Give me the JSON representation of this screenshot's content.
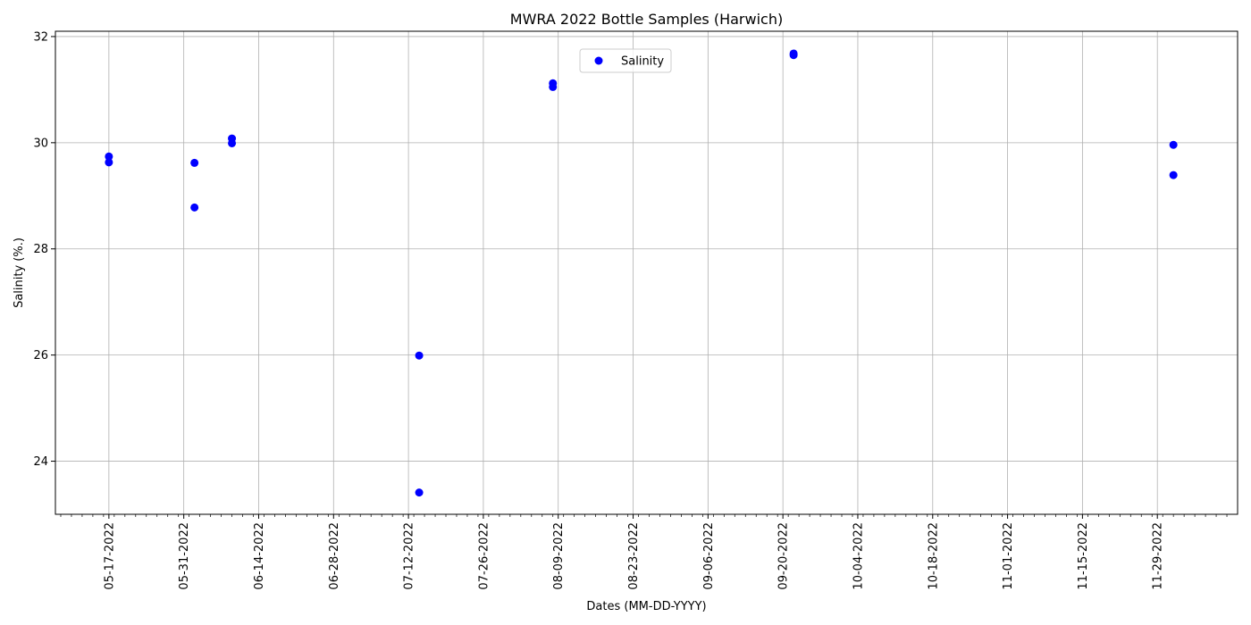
{
  "chart_data": {
    "type": "scatter",
    "title": "MWRA 2022 Bottle Samples (Harwich)",
    "xlabel": "Dates (MM-DD-YYYY)",
    "ylabel": "Salinity (%.)",
    "grid": true,
    "legend_position": "upper-center",
    "x_axis_type": "date",
    "xlim": [
      "2022-05-07",
      "2022-12-14"
    ],
    "ylim": [
      23.0,
      32.1
    ],
    "x_ticks": [
      "05-17-2022",
      "05-31-2022",
      "06-14-2022",
      "06-28-2022",
      "07-12-2022",
      "07-26-2022",
      "08-09-2022",
      "08-23-2022",
      "09-06-2022",
      "09-20-2022",
      "10-04-2022",
      "10-18-2022",
      "11-01-2022",
      "11-15-2022",
      "11-29-2022"
    ],
    "y_ticks": [
      "24",
      "26",
      "28",
      "30",
      "32"
    ],
    "series": [
      {
        "name": "Salinity",
        "color": "#0000ff",
        "points": [
          {
            "x": "2022-05-17",
            "y": 29.74
          },
          {
            "x": "2022-05-17",
            "y": 29.63
          },
          {
            "x": "2022-06-02",
            "y": 29.62
          },
          {
            "x": "2022-06-02",
            "y": 28.78
          },
          {
            "x": "2022-06-09",
            "y": 30.08
          },
          {
            "x": "2022-06-09",
            "y": 29.99
          },
          {
            "x": "2022-07-14",
            "y": 25.99
          },
          {
            "x": "2022-07-14",
            "y": 23.41
          },
          {
            "x": "2022-08-08",
            "y": 31.12
          },
          {
            "x": "2022-08-08",
            "y": 31.05
          },
          {
            "x": "2022-09-22",
            "y": 31.68
          },
          {
            "x": "2022-09-22",
            "y": 31.65
          },
          {
            "x": "2022-12-02",
            "y": 29.96
          },
          {
            "x": "2022-12-02",
            "y": 29.39
          }
        ]
      }
    ]
  }
}
